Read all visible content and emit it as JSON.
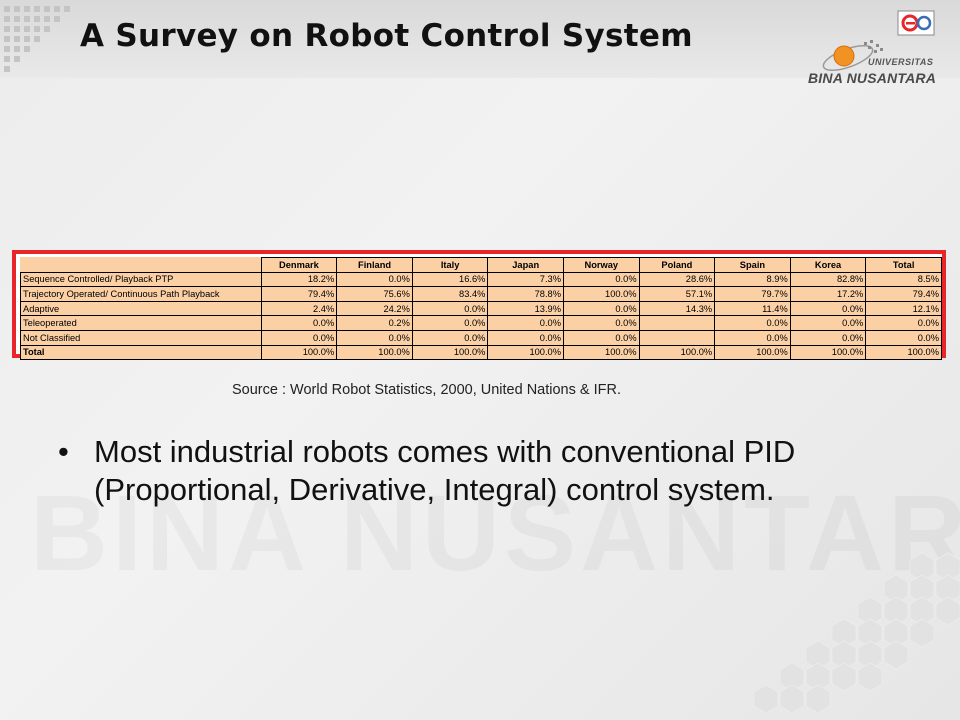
{
  "slide": {
    "title": "A Survey on Robot Control System",
    "logo": {
      "small_badge_icon": "e-learning-badge-icon",
      "university_line": "UNIVERSITAS",
      "name_line": "BINA NUSANTARA"
    },
    "source": "Source : World Robot Statistics, 2000, United Nations & IFR.",
    "bullets": [
      "Most industrial robots comes with conventional PID (Proportional, Derivative, Integral) control system."
    ],
    "colors": {
      "table_border": "#e8262a",
      "table_fill": "#fcd0a5"
    }
  },
  "table": {
    "headers": [
      "",
      "Denmark",
      "Finland",
      "Italy",
      "Japan",
      "Norway",
      "Poland",
      "Spain",
      "Korea",
      "Total"
    ],
    "rows": [
      {
        "label": "Sequence Controlled/ Playback PTP",
        "values": [
          "18.2%",
          "0.0%",
          "16.6%",
          "7.3%",
          "0.0%",
          "28.6%",
          "8.9%",
          "82.8%",
          "8.5%"
        ]
      },
      {
        "label": "Trajectory Operated/ Continuous Path Playback",
        "values": [
          "79.4%",
          "75.6%",
          "83.4%",
          "78.8%",
          "100.0%",
          "57.1%",
          "79.7%",
          "17.2%",
          "79.4%"
        ]
      },
      {
        "label": "Adaptive",
        "values": [
          "2.4%",
          "24.2%",
          "0.0%",
          "13.9%",
          "0.0%",
          "14.3%",
          "11.4%",
          "0.0%",
          "12.1%"
        ]
      },
      {
        "label": "Teleoperated",
        "values": [
          "0.0%",
          "0.2%",
          "0.0%",
          "0.0%",
          "0.0%",
          "",
          "0.0%",
          "0.0%",
          "0.0%"
        ]
      },
      {
        "label": "Not Classified",
        "values": [
          "0.0%",
          "0.0%",
          "0.0%",
          "0.0%",
          "0.0%",
          "",
          "0.0%",
          "0.0%",
          "0.0%"
        ]
      },
      {
        "label": "Total",
        "values": [
          "100.0%",
          "100.0%",
          "100.0%",
          "100.0%",
          "100.0%",
          "100.0%",
          "100.0%",
          "100.0%",
          "100.0%"
        ]
      }
    ]
  }
}
